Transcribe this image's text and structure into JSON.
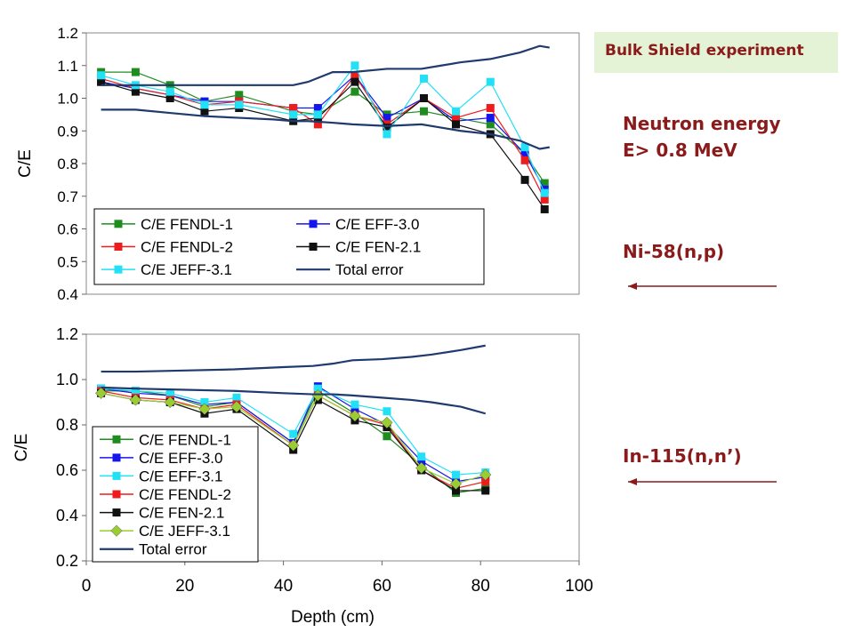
{
  "header": {
    "badge": "Bulk Shield experiment"
  },
  "notes": {
    "energy_line1": "Neutron energy",
    "energy_line2": "E> 0.8 MeV",
    "reaction_top": "Ni-58(n,p)",
    "reaction_bottom": "In-115(n,n’)"
  },
  "colors": {
    "annotation": "#8b1a1a",
    "badge_bg": "#e4f2d6",
    "arrow": "#8b1a1a"
  },
  "chart_data": [
    {
      "type": "line",
      "ylabel": "C/E",
      "xlabel": "",
      "ylim": [
        0.4,
        1.2
      ],
      "yticks": [
        "1.2",
        "1.1",
        "1.0",
        "0.9",
        "0.8",
        "0.7",
        "0.6",
        "0.5",
        "0.4"
      ],
      "x": [
        3,
        10,
        17,
        24,
        31,
        42,
        47,
        54.5,
        61,
        68.5,
        75,
        82,
        89,
        93
      ],
      "legend": "bottom-left, 2 columns",
      "series": [
        {
          "name": "C/E FENDL-1",
          "color": "#1e8c1e",
          "marker": "square",
          "values": [
            1.08,
            1.08,
            1.04,
            0.99,
            1.01,
            0.96,
            0.95,
            1.02,
            0.95,
            0.96,
            0.94,
            0.92,
            0.83,
            0.74
          ]
        },
        {
          "name": "C/E EFF-3.0",
          "color": "#1515ee",
          "marker": "square",
          "values": [
            1.05,
            1.03,
            1.01,
            0.99,
            0.99,
            0.97,
            0.97,
            1.07,
            0.94,
            1.0,
            0.93,
            0.94,
            0.83,
            0.72
          ]
        },
        {
          "name": "C/E FENDL-2",
          "color": "#ee1c1c",
          "marker": "square",
          "values": [
            1.06,
            1.03,
            1.01,
            0.98,
            0.99,
            0.97,
            0.92,
            1.07,
            0.92,
            1.0,
            0.94,
            0.97,
            0.81,
            0.69
          ]
        },
        {
          "name": "C/E FEN-2.1",
          "color": "#111111",
          "marker": "square",
          "values": [
            1.05,
            1.02,
            1.0,
            0.96,
            0.97,
            0.93,
            0.94,
            1.05,
            0.91,
            1.0,
            0.92,
            0.89,
            0.75,
            0.66
          ]
        },
        {
          "name": "C/E JEFF-3.1",
          "color": "#22e0f5",
          "marker": "square",
          "values": [
            1.07,
            1.04,
            1.02,
            0.98,
            0.98,
            0.95,
            0.95,
            1.1,
            0.89,
            1.06,
            0.96,
            1.05,
            0.85,
            0.71
          ]
        },
        {
          "name": "Total error",
          "color": "#1f3a6e",
          "marker": "none",
          "band": true,
          "x": [
            3,
            10,
            17,
            24,
            31,
            38,
            42,
            45,
            50,
            54,
            61,
            68,
            72,
            76,
            82,
            88,
            92,
            94
          ],
          "upper": [
            1.04,
            1.04,
            1.04,
            1.04,
            1.04,
            1.04,
            1.04,
            1.05,
            1.08,
            1.08,
            1.09,
            1.09,
            1.1,
            1.11,
            1.12,
            1.14,
            1.16,
            1.155
          ],
          "lower": [
            0.965,
            0.965,
            0.955,
            0.945,
            0.94,
            0.935,
            0.93,
            0.93,
            0.925,
            0.92,
            0.915,
            0.92,
            0.91,
            0.9,
            0.89,
            0.87,
            0.845,
            0.85
          ]
        }
      ]
    },
    {
      "type": "line",
      "ylabel": "C/E",
      "xlabel": "Depth (cm)",
      "xlim": [
        0,
        100
      ],
      "ylim": [
        0.2,
        1.2
      ],
      "xticks": [
        "0",
        "20",
        "40",
        "60",
        "80",
        "100"
      ],
      "yticks": [
        "1.2",
        "1.0",
        "0.8",
        "0.6",
        "0.4",
        "0.2"
      ],
      "x": [
        3,
        10,
        17,
        24,
        30.5,
        42,
        47,
        54.5,
        61,
        68,
        75,
        81
      ],
      "legend": "bottom-left, 1 column",
      "series": [
        {
          "name": "C/E FENDL-1",
          "color": "#1e8c1e",
          "marker": "square",
          "values": [
            0.95,
            0.95,
            0.93,
            0.88,
            0.9,
            0.72,
            0.95,
            0.85,
            0.75,
            0.62,
            0.5,
            0.52
          ]
        },
        {
          "name": "C/E EFF-3.0",
          "color": "#1515ee",
          "marker": "square",
          "values": [
            0.96,
            0.94,
            0.93,
            0.89,
            0.9,
            0.72,
            0.97,
            0.87,
            0.8,
            0.64,
            0.55,
            0.57
          ]
        },
        {
          "name": "C/E EFF-3.1",
          "color": "#22e0f5",
          "marker": "square",
          "values": [
            0.96,
            0.95,
            0.94,
            0.9,
            0.92,
            0.76,
            0.96,
            0.89,
            0.86,
            0.66,
            0.58,
            0.59
          ]
        },
        {
          "name": "C/E FENDL-2",
          "color": "#ee1c1c",
          "marker": "square",
          "values": [
            0.95,
            0.92,
            0.91,
            0.87,
            0.89,
            0.71,
            0.93,
            0.84,
            0.8,
            0.6,
            0.52,
            0.55
          ]
        },
        {
          "name": "C/E FEN-2.1",
          "color": "#111111",
          "marker": "square",
          "values": [
            0.94,
            0.91,
            0.9,
            0.85,
            0.87,
            0.69,
            0.91,
            0.82,
            0.79,
            0.6,
            0.51,
            0.51
          ]
        },
        {
          "name": "C/E JEFF-3.1",
          "color": "#9acd32",
          "marker": "diamond",
          "values": [
            0.94,
            0.91,
            0.9,
            0.87,
            0.88,
            0.71,
            0.93,
            0.84,
            0.81,
            0.61,
            0.54,
            0.58
          ]
        },
        {
          "name": "Total error",
          "color": "#1f3a6e",
          "marker": "none",
          "band": true,
          "x": [
            3,
            10,
            20,
            30,
            40,
            46,
            50,
            54,
            60,
            66,
            70,
            76,
            81
          ],
          "upper": [
            1.035,
            1.035,
            1.04,
            1.045,
            1.055,
            1.06,
            1.07,
            1.085,
            1.09,
            1.1,
            1.11,
            1.13,
            1.15
          ],
          "lower": [
            0.965,
            0.96,
            0.955,
            0.95,
            0.94,
            0.935,
            0.935,
            0.93,
            0.92,
            0.91,
            0.9,
            0.88,
            0.85
          ]
        }
      ]
    }
  ]
}
